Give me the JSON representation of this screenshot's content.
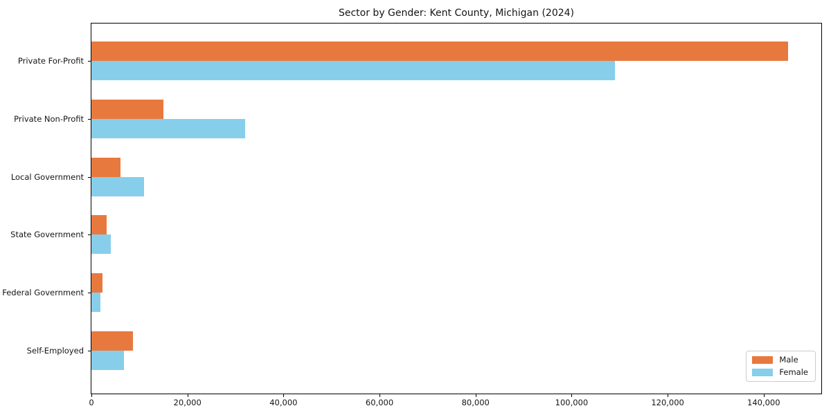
{
  "chart_data": {
    "type": "bar",
    "orientation": "horizontal",
    "title": "Sector by Gender: Kent County, Michigan (2024)",
    "categories": [
      "Private For-Profit",
      "Private Non-Profit",
      "Local Government",
      "State Government",
      "Federal Government",
      "Self-Employed"
    ],
    "series": [
      {
        "name": "Male",
        "color": "#e8793e",
        "values": [
          145000,
          15000,
          6000,
          3200,
          2300,
          8700
        ]
      },
      {
        "name": "Female",
        "color": "#87ceeb",
        "values": [
          109000,
          32000,
          11000,
          4000,
          1800,
          6800
        ]
      }
    ],
    "xlabel": "",
    "ylabel": "",
    "xlim": [
      0,
      152000
    ],
    "xticks": [
      0,
      20000,
      40000,
      60000,
      80000,
      100000,
      120000,
      140000
    ],
    "xtick_labels": [
      "0",
      "20,000",
      "40,000",
      "60,000",
      "80,000",
      "100,000",
      "120,000",
      "140,000"
    ],
    "grid": false,
    "legend": {
      "position": "lower right",
      "items": [
        "Male",
        "Female"
      ]
    },
    "colors": {
      "background": "#ffffff",
      "axis": "#000000",
      "legend_border": "#cccccc"
    }
  }
}
